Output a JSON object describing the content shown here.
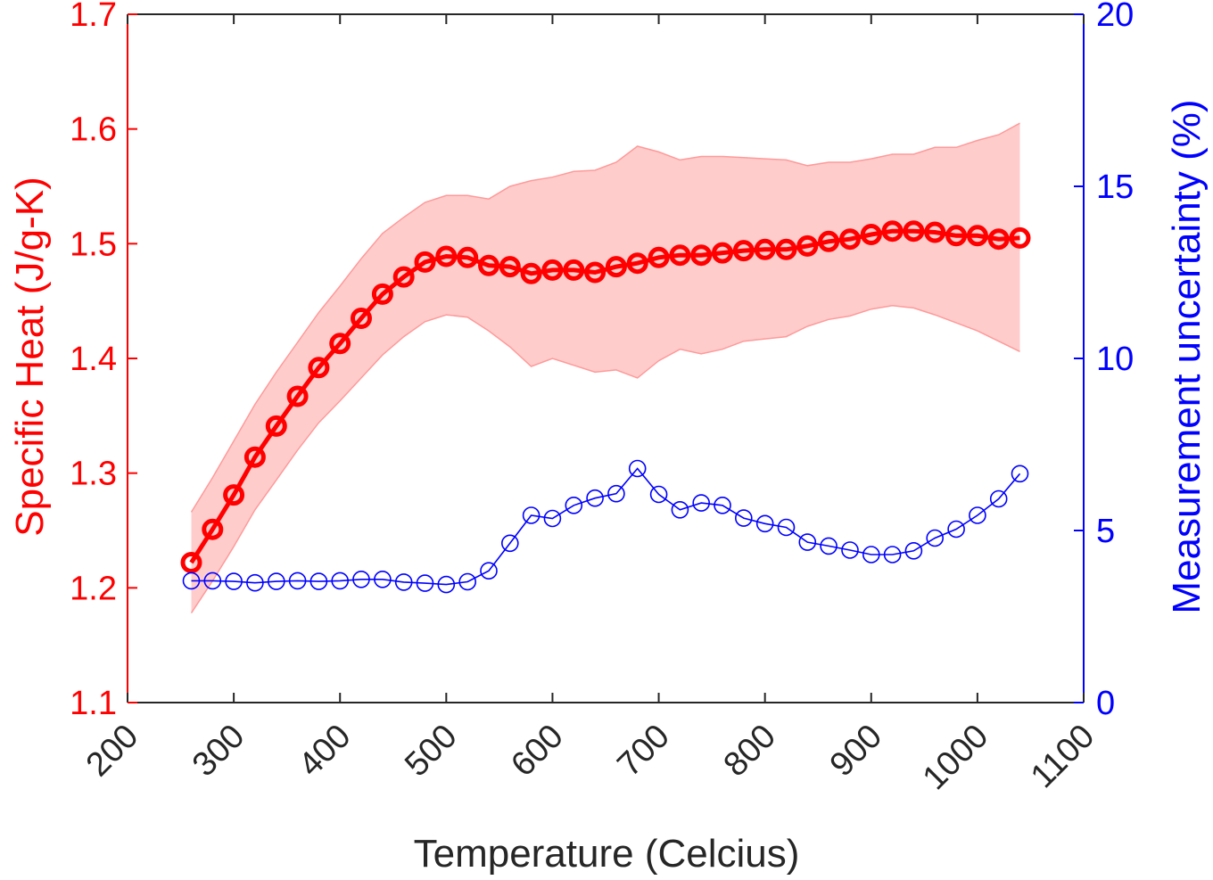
{
  "chart_data": {
    "type": "line",
    "xlabel": "Temperature (Celcius)",
    "ylabel_left": "Specific Heat (J/g-K)",
    "ylabel_right": "Measurement uncertainty (%)",
    "xlim": [
      200,
      1100
    ],
    "ylim_left": [
      1.1,
      1.7
    ],
    "ylim_right": [
      0,
      20
    ],
    "x_ticks": [
      "200",
      "300",
      "400",
      "500",
      "600",
      "700",
      "800",
      "900",
      "1000",
      "1100"
    ],
    "y_left_ticks": [
      "1.1",
      "1.2",
      "1.3",
      "1.4",
      "1.5",
      "1.6",
      "1.7"
    ],
    "y_right_ticks": [
      "0",
      "5",
      "10",
      "15",
      "20"
    ],
    "grid": false,
    "colors": {
      "left_axis": "#ff0000",
      "right_axis": "#0000ff",
      "band_fill": "#ffcccc",
      "band_edge": "#ff9999",
      "frame": "#262626"
    },
    "x": [
      260,
      280,
      300,
      320,
      340,
      360,
      380,
      400,
      420,
      440,
      460,
      480,
      500,
      520,
      540,
      560,
      580,
      600,
      620,
      640,
      660,
      680,
      700,
      720,
      740,
      760,
      780,
      800,
      820,
      840,
      860,
      880,
      900,
      920,
      940,
      960,
      980,
      1000,
      1020,
      1040
    ],
    "series": [
      {
        "axis": "left",
        "color": "#ff0000",
        "values": [
          1.222,
          1.251,
          1.281,
          1.314,
          1.341,
          1.367,
          1.392,
          1.413,
          1.435,
          1.456,
          1.471,
          1.484,
          1.489,
          1.488,
          1.481,
          1.48,
          1.474,
          1.477,
          1.477,
          1.475,
          1.48,
          1.483,
          1.488,
          1.49,
          1.49,
          1.492,
          1.494,
          1.495,
          1.495,
          1.498,
          1.502,
          1.504,
          1.508,
          1.511,
          1.511,
          1.51,
          1.507,
          1.507,
          1.504,
          1.505
        ]
      },
      {
        "axis": "right",
        "color": "#0000ff",
        "values": [
          3.54,
          3.54,
          3.52,
          3.48,
          3.52,
          3.54,
          3.52,
          3.54,
          3.58,
          3.58,
          3.5,
          3.47,
          3.43,
          3.51,
          3.83,
          4.63,
          5.44,
          5.35,
          5.73,
          5.94,
          6.07,
          6.8,
          6.05,
          5.6,
          5.8,
          5.73,
          5.36,
          5.2,
          5.09,
          4.66,
          4.55,
          4.43,
          4.3,
          4.3,
          4.41,
          4.78,
          5.04,
          5.44,
          5.92,
          6.65
        ]
      }
    ],
    "band": {
      "axis": "left",
      "x": [
        260,
        280,
        300,
        320,
        340,
        360,
        380,
        400,
        420,
        440,
        460,
        480,
        500,
        520,
        540,
        560,
        580,
        600,
        620,
        640,
        660,
        680,
        700,
        720,
        740,
        760,
        780,
        800,
        820,
        840,
        860,
        880,
        900,
        920,
        940,
        960,
        980,
        1000,
        1020,
        1040
      ],
      "upper": [
        1.266,
        1.296,
        1.328,
        1.36,
        1.388,
        1.414,
        1.44,
        1.463,
        1.487,
        1.509,
        1.523,
        1.536,
        1.542,
        1.542,
        1.539,
        1.55,
        1.555,
        1.558,
        1.563,
        1.564,
        1.571,
        1.585,
        1.58,
        1.573,
        1.576,
        1.576,
        1.575,
        1.574,
        1.573,
        1.568,
        1.571,
        1.571,
        1.574,
        1.578,
        1.578,
        1.584,
        1.584,
        1.59,
        1.595,
        1.605
      ],
      "lower": [
        1.178,
        1.206,
        1.236,
        1.268,
        1.294,
        1.32,
        1.344,
        1.363,
        1.383,
        1.403,
        1.419,
        1.432,
        1.438,
        1.436,
        1.424,
        1.41,
        1.393,
        1.4,
        1.394,
        1.388,
        1.39,
        1.383,
        1.398,
        1.408,
        1.404,
        1.408,
        1.415,
        1.417,
        1.419,
        1.428,
        1.434,
        1.437,
        1.443,
        1.446,
        1.444,
        1.438,
        1.431,
        1.424,
        1.415,
        1.406
      ]
    }
  }
}
